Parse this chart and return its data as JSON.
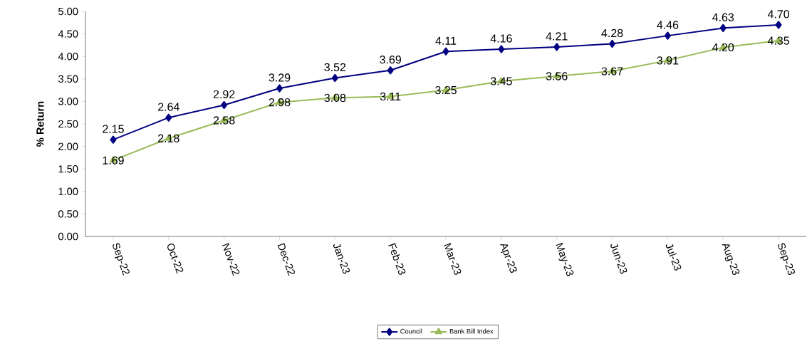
{
  "chart_data": {
    "type": "line",
    "ylabel": "% Return",
    "categories": [
      "Sep-22",
      "Oct-22",
      "Nov-22",
      "Dec-22",
      "Jan-23",
      "Feb-23",
      "Mar-23",
      "Apr-23",
      "May-23",
      "Jun-23",
      "Jul-23",
      "Aug-23",
      "Sep-23"
    ],
    "series": [
      {
        "name": "Council",
        "color": "#000080",
        "marker": "diamond",
        "values": [
          2.15,
          2.64,
          2.92,
          3.29,
          3.52,
          3.69,
          4.11,
          4.16,
          4.21,
          4.28,
          4.46,
          4.63,
          4.7
        ],
        "value_labels": [
          "2.15",
          "2.64",
          "2.92",
          "3.29",
          "3.52",
          "3.69",
          "4.11",
          "4.16",
          "4.21",
          "4.28",
          "4.46",
          "4.63",
          "4.70"
        ]
      },
      {
        "name": "Bank Bill Index",
        "color": "#9bbb59",
        "marker": "triangle",
        "values": [
          1.69,
          2.18,
          2.58,
          2.98,
          3.08,
          3.11,
          3.25,
          3.45,
          3.56,
          3.67,
          3.91,
          4.2,
          4.35
        ],
        "value_labels": [
          "1.69",
          "2.18",
          "2.58",
          "2.98",
          "3.08",
          "3.11",
          "3.25",
          "3.45",
          "3.56",
          "3.67",
          "3.91",
          "4.20",
          "4.35"
        ]
      }
    ],
    "ylim": [
      0,
      5
    ],
    "yticks": [
      {
        "value": 0,
        "label": "0.00"
      },
      {
        "value": 0.5,
        "label": "0.50"
      },
      {
        "value": 1,
        "label": "1.00"
      },
      {
        "value": 1.5,
        "label": "1.50"
      },
      {
        "value": 2,
        "label": "2.00"
      },
      {
        "value": 2.5,
        "label": "2.50"
      },
      {
        "value": 3,
        "label": "3.00"
      },
      {
        "value": 3.5,
        "label": "3.50"
      },
      {
        "value": 4,
        "label": "4.00"
      },
      {
        "value": 4.5,
        "label": "4.50"
      },
      {
        "value": 5,
        "label": "5.00"
      }
    ],
    "legend": "bottom",
    "grid": false,
    "line_style": "solid"
  }
}
